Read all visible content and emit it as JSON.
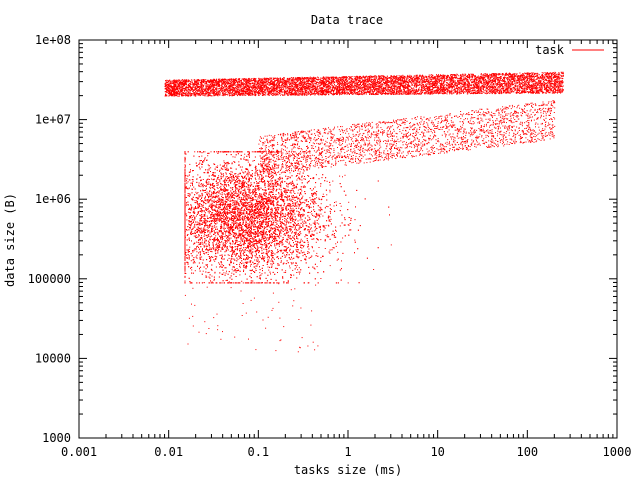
{
  "chart_data": {
    "type": "scatter",
    "title": "Data trace",
    "xlabel": "tasks size (ms)",
    "ylabel": "data size (B)",
    "x_scale": "log",
    "y_scale": "log",
    "xlim": [
      0.001,
      1000
    ],
    "ylim": [
      1000,
      100000000
    ],
    "x_ticks": [
      0.001,
      0.01,
      0.1,
      1,
      10,
      100,
      1000
    ],
    "x_tick_labels": [
      "0.001",
      "0.01",
      "0.1",
      "1",
      "10",
      "100",
      "1000"
    ],
    "y_ticks": [
      1000,
      10000,
      100000,
      1000000,
      10000000,
      100000000
    ],
    "y_tick_labels": [
      "1000",
      "10000",
      "100000",
      "1e+06",
      "1e+07",
      "1e+08"
    ],
    "grid": false,
    "legend_position": "top-right",
    "color": "#ff0000",
    "series": [
      {
        "name": "task",
        "clusters": [
          {
            "x_range": [
              0.009,
              250
            ],
            "y_range": [
              19000000,
              42000000
            ],
            "density": "very high"
          },
          {
            "x_range": [
              0.015,
              3
            ],
            "y_range": [
              90000,
              4000000
            ],
            "center": [
              0.07,
              600000
            ],
            "density": "high"
          },
          {
            "x_range": [
              0.1,
              200
            ],
            "y_range": [
              2000000,
              12000000
            ],
            "density": "medium"
          },
          {
            "x_range": [
              0.015,
              0.5
            ],
            "y_range": [
              12000,
              90000
            ],
            "density": "sparse"
          }
        ]
      }
    ]
  }
}
